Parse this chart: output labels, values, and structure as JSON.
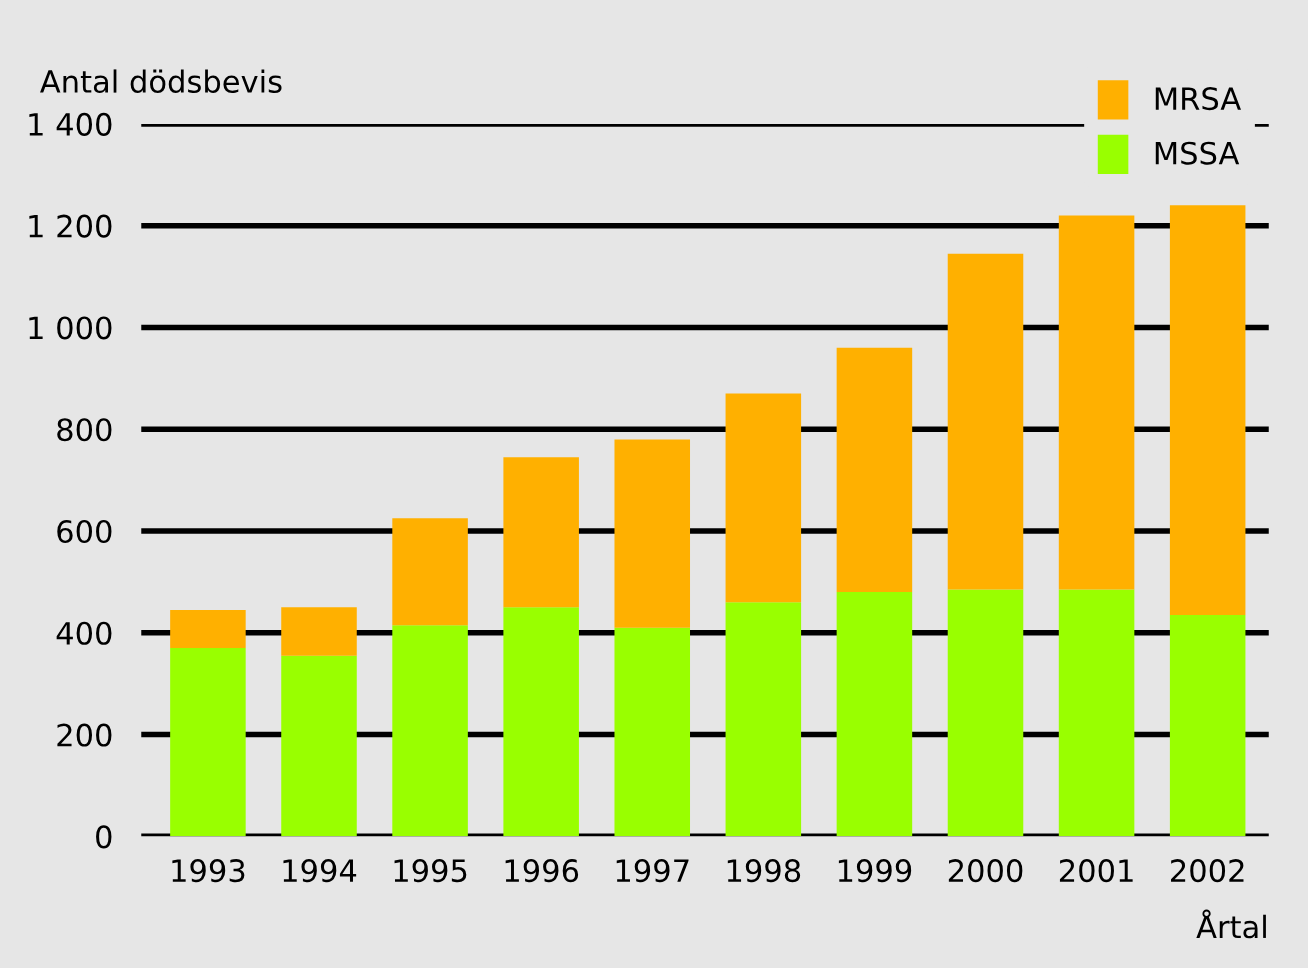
{
  "chart_data": {
    "type": "bar",
    "stacked": true,
    "ylabel": "Antal dödsbevis",
    "xlabel": "Årtal",
    "categories": [
      "1993",
      "1994",
      "1995",
      "1996",
      "1997",
      "1998",
      "1999",
      "2000",
      "2001",
      "2002"
    ],
    "series": [
      {
        "name": "MSSA",
        "color": "#99ff00",
        "values": [
          370,
          355,
          415,
          450,
          410,
          460,
          480,
          485,
          485,
          435
        ]
      },
      {
        "name": "MRSA",
        "color": "#ffb000",
        "values": [
          75,
          95,
          210,
          295,
          370,
          410,
          480,
          660,
          735,
          805
        ]
      }
    ],
    "ylim": [
      0,
      1400
    ],
    "yticks": [
      0,
      200,
      400,
      600,
      800,
      {
        "value": 1000,
        "label": "1 000"
      },
      {
        "value": 1200,
        "label": "1 200"
      },
      {
        "value": 1400,
        "label": "1 400"
      }
    ],
    "grid": "y",
    "legend": "top right"
  }
}
